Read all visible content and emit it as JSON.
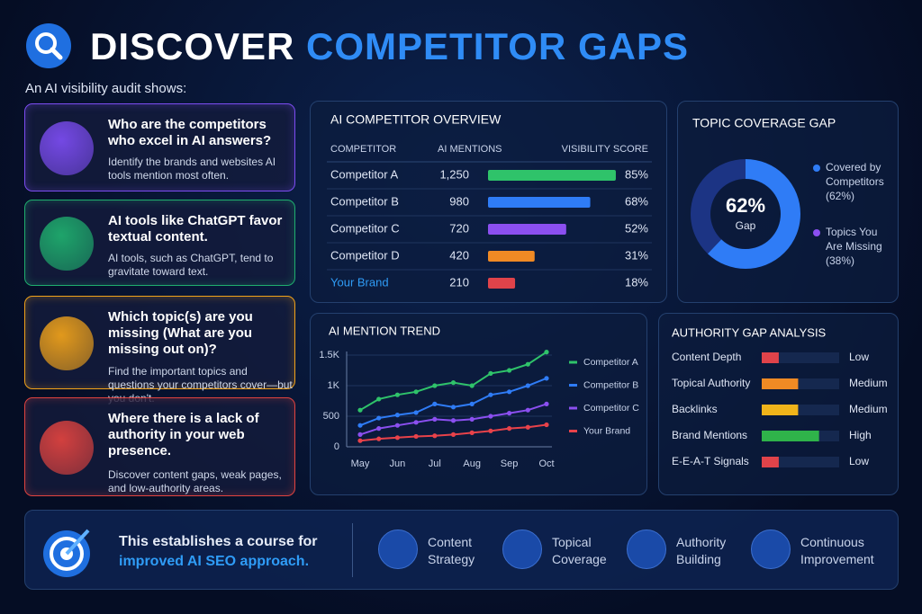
{
  "header": {
    "title_a": "DISCOVER",
    "title_b": "COMPETITOR GAPS",
    "subtitle": "An AI visibility audit shows:"
  },
  "cards": [
    {
      "title": "Who are the competitors who excel in AI answers?",
      "text": "Identify the brands and websites AI tools mention most often.",
      "color": "#7b4cf0"
    },
    {
      "title": "AI tools like ChatGPT favor textual content.",
      "text": "AI tools, such as ChatGPT, tend to gravitate toward text.",
      "color": "#1fae6e"
    },
    {
      "title": "Which topic(s) are you missing (What are you missing out on)?",
      "text": "Find the important topics and questions your competitors cover—but you don't.",
      "color": "#f0a21a"
    },
    {
      "title": "Where there is a lack of authority in your web presence.",
      "text": "Discover content gaps, weak pages, and low-authority areas.",
      "color": "#e0433f"
    }
  ],
  "chart_data": [
    {
      "type": "bar",
      "title": "AI COMPETITOR OVERVIEW",
      "columns": [
        "COMPETITOR",
        "AI MENTIONS",
        "VISIBILITY SCORE"
      ],
      "categories": [
        "Competitor A",
        "Competitor B",
        "Competitor C",
        "Competitor D",
        "Your Brand"
      ],
      "mentions": [
        1250,
        980,
        720,
        420,
        210
      ],
      "mentions_labels": [
        "1,250",
        "980",
        "720",
        "420",
        "210"
      ],
      "values": [
        85,
        68,
        52,
        31,
        18
      ],
      "value_labels": [
        "85%",
        "68%",
        "52%",
        "31%",
        "18%"
      ],
      "colors": [
        "#2fc36a",
        "#2f7cf6",
        "#8b4ff0",
        "#f08a24",
        "#e0434a"
      ],
      "category_colors": [
        "#dfe6f5",
        "#dfe6f5",
        "#dfe6f5",
        "#dfe6f5",
        "#2f9cf6"
      ],
      "xlim": [
        0,
        100
      ]
    },
    {
      "type": "pie",
      "title": "TOPIC COVERAGE GAP",
      "categories": [
        "Covered by Competitors",
        "Topics You Are Missing"
      ],
      "values": [
        62,
        38
      ],
      "value_labels": [
        "(62%)",
        "(38%)"
      ],
      "colors": [
        "#2f7cf6",
        "#1c3484"
      ],
      "center": {
        "value_label": "62%",
        "text": "Gap"
      }
    },
    {
      "type": "line",
      "title": "AI MENTION TREND",
      "categories": [
        "May",
        null,
        "Jun",
        null,
        "Jul",
        null,
        "Aug",
        null,
        "Sep",
        null,
        "Oct"
      ],
      "ylim": [
        0,
        1500
      ],
      "yticks": [
        0,
        500,
        {
          "value": 1000,
          "label": "1K"
        },
        {
          "value": 1500,
          "label": "1.5K"
        }
      ],
      "series": [
        {
          "name": "Competitor A",
          "color": "#2fc36a",
          "values": [
            600,
            780,
            850,
            900,
            1000,
            1050,
            1000,
            1200,
            1250,
            1350,
            1550
          ]
        },
        {
          "name": "Competitor B",
          "color": "#2f7cf6",
          "values": [
            350,
            470,
            520,
            560,
            700,
            650,
            700,
            850,
            900,
            1000,
            1120
          ]
        },
        {
          "name": "Competitor C",
          "color": "#8b4ff0",
          "values": [
            200,
            300,
            350,
            400,
            450,
            430,
            450,
            500,
            550,
            600,
            700
          ]
        },
        {
          "name": "Your Brand",
          "color": "#e8424a",
          "values": [
            100,
            130,
            150,
            170,
            180,
            200,
            230,
            260,
            300,
            320,
            360
          ]
        }
      ]
    },
    {
      "type": "bar",
      "title": "AUTHORITY GAP ANALYSIS",
      "categories": [
        "Content Depth",
        "Topical Authority",
        "Backlinks",
        "Brand Mentions",
        "E-E-A-T Signals"
      ],
      "values": [
        22,
        47,
        47,
        74,
        22
      ],
      "value_labels": [
        "Low",
        "Medium",
        "Medium",
        "High",
        "Low"
      ],
      "colors": [
        "#e0434a",
        "#f08a24",
        "#f0b41a",
        "#2fb34a",
        "#e0434a"
      ],
      "xlim": [
        0,
        100
      ]
    }
  ],
  "footer": {
    "line1": "This establishes a course for",
    "line2": "improved AI SEO approach.",
    "items": [
      "Content Strategy",
      "Topical Coverage",
      "Authority Building",
      "Continuous Improvement"
    ]
  }
}
